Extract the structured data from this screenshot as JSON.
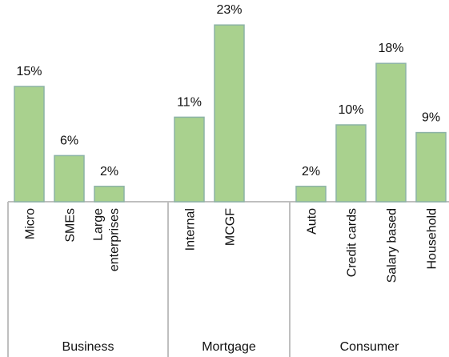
{
  "chart_data": {
    "type": "bar",
    "color": "#a9d18e",
    "edge_color": "#8cb3a6",
    "groups": [
      {
        "name": "Business",
        "categories": [
          "Micro",
          "SMEs",
          [
            "Large",
            "enterprises"
          ]
        ],
        "values": [
          15,
          6,
          2
        ],
        "value_labels": [
          "15%",
          "6%",
          "2%"
        ]
      },
      {
        "name": "Mortgage",
        "categories": [
          "Internal",
          "MCGF"
        ],
        "values": [
          11,
          23
        ],
        "value_labels": [
          "11%",
          "23%"
        ]
      },
      {
        "name": "Consumer",
        "categories": [
          "Auto",
          "Credit cards",
          "Salary based",
          "Household"
        ],
        "values": [
          2,
          10,
          18,
          9
        ],
        "value_labels": [
          "2%",
          "10%",
          "18%",
          "9%"
        ]
      }
    ]
  }
}
